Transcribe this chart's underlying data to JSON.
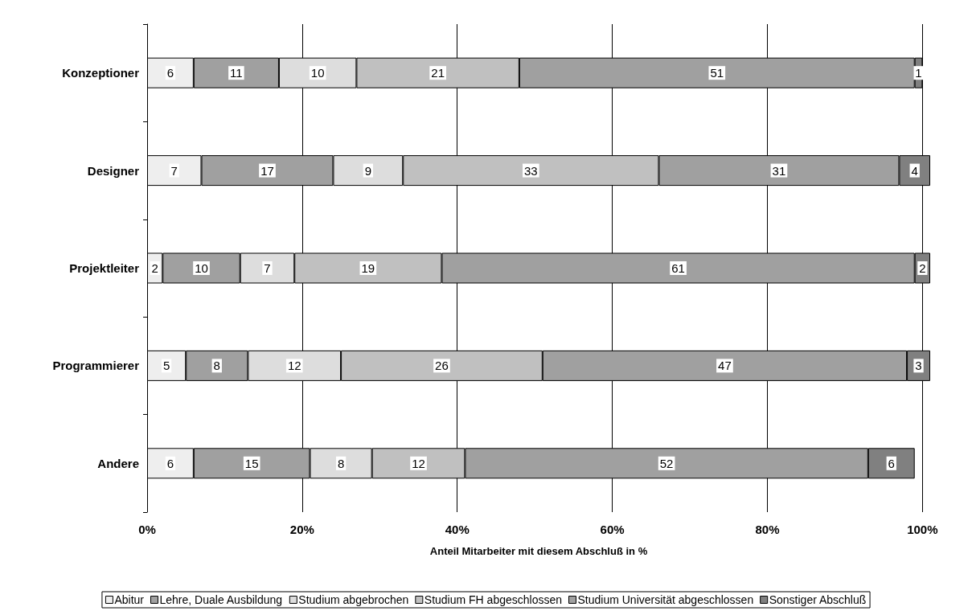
{
  "chart_data": {
    "type": "bar",
    "orientation": "horizontal",
    "stacked": true,
    "data_labels": true,
    "grid": "x",
    "legend": "bottom",
    "xlabel": "Anteil Mitarbeiter mit diesem Abschluß in %",
    "categories": [
      "Konzeptioner",
      "Designer",
      "Projektleiter",
      "Programmierer",
      "Andere"
    ],
    "xlim": [
      0,
      101
    ],
    "xticks": [
      {
        "value": 0,
        "label": "0%"
      },
      {
        "value": 20,
        "label": "20%"
      },
      {
        "value": 40,
        "label": "40%"
      },
      {
        "value": 60,
        "label": "60%"
      },
      {
        "value": 80,
        "label": "80%"
      },
      {
        "value": 100,
        "label": "100%"
      }
    ],
    "series": [
      {
        "name": "Abitur",
        "color": "#eeeeee",
        "values": [
          6,
          7,
          2,
          5,
          6
        ]
      },
      {
        "name": "Lehre, Duale Ausbildung",
        "color": "#a0a0a0",
        "values": [
          11,
          17,
          10,
          8,
          15
        ]
      },
      {
        "name": "Studium abgebrochen",
        "color": "#dddddd",
        "values": [
          10,
          9,
          7,
          12,
          8
        ]
      },
      {
        "name": "Studium FH abgeschlossen",
        "color": "#c0c0c0",
        "values": [
          21,
          33,
          19,
          26,
          12
        ]
      },
      {
        "name": "Studium Universität abgeschlossen",
        "color": "#a0a0a0",
        "values": [
          51,
          31,
          61,
          47,
          52
        ]
      },
      {
        "name": "Sonstiger Abschluß",
        "color": "#808080",
        "values": [
          1,
          4,
          2,
          3,
          6
        ]
      }
    ]
  }
}
